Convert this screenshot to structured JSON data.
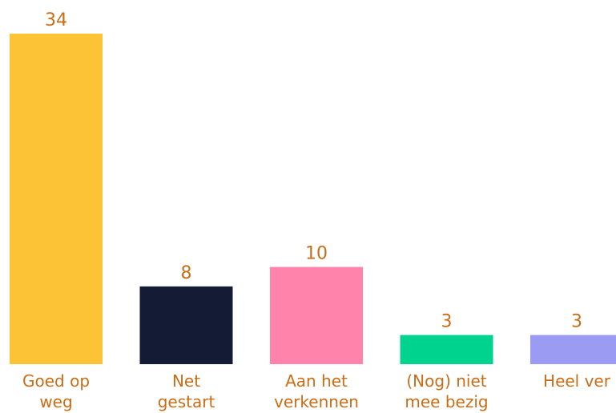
{
  "chart_data": {
    "type": "bar",
    "categories": [
      [
        "Goed op",
        "weg"
      ],
      [
        "Net",
        "gestart"
      ],
      [
        "Aan het",
        "verkennen"
      ],
      [
        "(Nog) niet",
        "mee bezig"
      ],
      [
        "Heel ver"
      ]
    ],
    "values": [
      34,
      8,
      10,
      3,
      3
    ],
    "colors": [
      "#fbc335",
      "#141b34",
      "#ff83ab",
      "#00d38e",
      "#9b9bf4"
    ],
    "label_color": "#c96d17",
    "ylim": [
      0,
      34
    ],
    "grid": false,
    "legend": "none",
    "title": "",
    "xlabel": "",
    "ylabel": ""
  }
}
